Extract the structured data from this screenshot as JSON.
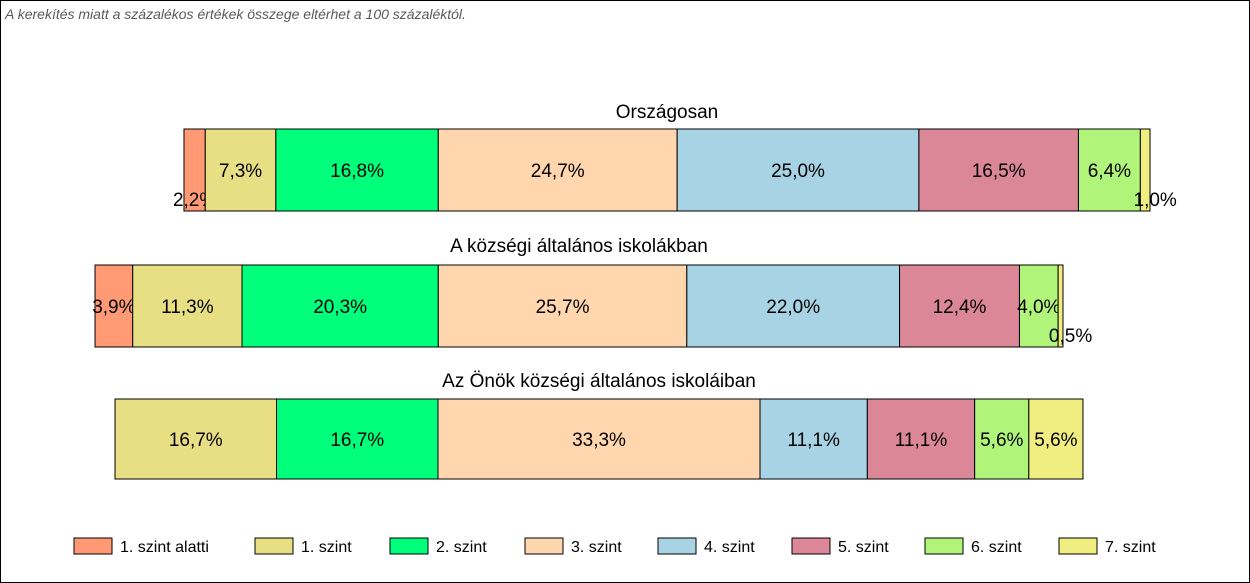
{
  "note": "A kerekítés miatt a  százalékos értékek összege eltérhet a 100 százaléktól.",
  "chart_data": {
    "type": "bar",
    "orientation": "horizontal-stacked-100",
    "series": [
      {
        "name": "1. szint alatti",
        "color": "#FF9A75"
      },
      {
        "name": "1. szint",
        "color": "#E8DF85"
      },
      {
        "name": "2. szint",
        "color": "#00FF7A"
      },
      {
        "name": "3. szint",
        "color": "#FFD6AE"
      },
      {
        "name": "4. szint",
        "color": "#A7D3E5"
      },
      {
        "name": "5. szint",
        "color": "#DB8797"
      },
      {
        "name": "6. szint",
        "color": "#B0F57A"
      },
      {
        "name": "7. szint",
        "color": "#F0EE80"
      }
    ],
    "rows": [
      {
        "title": "Országosan",
        "values": [
          2.2,
          7.3,
          16.8,
          24.7,
          25.0,
          16.5,
          6.4,
          1.0
        ],
        "labels": [
          "2,2%",
          "7,3%",
          "16,8%",
          "24,7%",
          "25,0%",
          "16,5%",
          "6,4%",
          "1,0%"
        ]
      },
      {
        "title": "A községi általános iskolákban",
        "values": [
          3.9,
          11.3,
          20.3,
          25.7,
          22.0,
          12.4,
          4.0,
          0.5
        ],
        "labels": [
          "3,9%",
          "11,3%",
          "20,3%",
          "25,7%",
          "22,0%",
          "12,4%",
          "4,0%",
          "0,5%"
        ]
      },
      {
        "title": "Az Önök községi általános iskoláiban",
        "values": [
          0,
          16.7,
          16.7,
          33.3,
          11.1,
          11.1,
          5.6,
          5.6
        ],
        "labels": [
          "",
          "16,7%",
          "16,7%",
          "33,3%",
          "11,1%",
          "11,1%",
          "5,6%",
          "5,6%"
        ]
      }
    ],
    "legend_position": "bottom"
  }
}
